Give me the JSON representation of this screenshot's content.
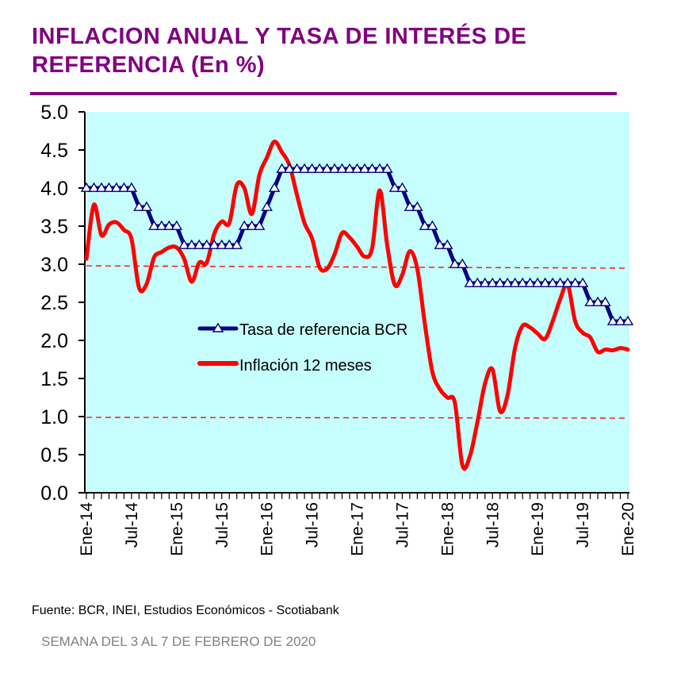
{
  "title": "INFLACION ANUAL Y TASA DE INTERÉS DE REFERENCIA (En %)",
  "source": "Fuente: BCR, INEI, Estudios Económicos - Scotiabank",
  "week": "SEMANA DEL 3 AL 7 DE FEBRERO DE 2020",
  "colors": {
    "title": "#800080",
    "plot_bg": "#c6fdfd",
    "rate": "#000080",
    "inflation": "#ff0000",
    "target_band": "#ff0000"
  },
  "chart_data": {
    "type": "line",
    "title": "INFLACION ANUAL Y TASA DE INTERÉS DE REFERENCIA (En %)",
    "xlabel": "",
    "ylabel": "",
    "ylim": [
      0,
      5
    ],
    "yticks": [
      "0.0",
      "0.5",
      "1.0",
      "1.5",
      "2.0",
      "2.5",
      "3.0",
      "3.5",
      "4.0",
      "4.5",
      "5.0"
    ],
    "x_start": "Ene-14",
    "x_end": "Ene-20",
    "xtick_labels": [
      "Ene-14",
      "Jul-14",
      "Ene-15",
      "Jul-15",
      "Ene-16",
      "Jul-16",
      "Ene-17",
      "Jul-17",
      "Ene-18",
      "Jul-18",
      "Ene-19",
      "Jul-19",
      "Ene-20"
    ],
    "legend_position": "center-left",
    "grid": false,
    "target_band": {
      "upper": 3.0,
      "lower": 1.0
    },
    "series": [
      {
        "name": "Tasa de referencia BCR",
        "marker": "triangle",
        "values": [
          4.0,
          4.0,
          4.0,
          4.0,
          4.0,
          4.0,
          4.0,
          3.75,
          3.75,
          3.5,
          3.5,
          3.5,
          3.5,
          3.25,
          3.25,
          3.25,
          3.25,
          3.25,
          3.25,
          3.25,
          3.25,
          3.5,
          3.5,
          3.5,
          3.75,
          4.0,
          4.25,
          4.25,
          4.25,
          4.25,
          4.25,
          4.25,
          4.25,
          4.25,
          4.25,
          4.25,
          4.25,
          4.25,
          4.25,
          4.25,
          4.25,
          4.0,
          4.0,
          3.75,
          3.75,
          3.5,
          3.5,
          3.25,
          3.25,
          3.0,
          3.0,
          2.75,
          2.75,
          2.75,
          2.75,
          2.75,
          2.75,
          2.75,
          2.75,
          2.75,
          2.75,
          2.75,
          2.75,
          2.75,
          2.75,
          2.75,
          2.75,
          2.5,
          2.5,
          2.5,
          2.25,
          2.25,
          2.25
        ]
      },
      {
        "name": "Inflación 12 meses",
        "marker": "none",
        "values": [
          3.07,
          3.78,
          3.38,
          3.52,
          3.55,
          3.45,
          3.33,
          2.69,
          2.74,
          3.09,
          3.16,
          3.22,
          3.22,
          3.07,
          2.77,
          3.02,
          3.02,
          3.4,
          3.56,
          3.54,
          4.04,
          4.0,
          3.66,
          4.17,
          4.4,
          4.61,
          4.47,
          4.3,
          3.91,
          3.54,
          3.34,
          2.96,
          2.94,
          3.13,
          3.41,
          3.35,
          3.23,
          3.1,
          3.21,
          3.97,
          3.25,
          2.73,
          2.86,
          3.17,
          2.94,
          2.22,
          1.59,
          1.36,
          1.25,
          1.18,
          0.36,
          0.48,
          0.93,
          1.43,
          1.62,
          1.07,
          1.28,
          1.9,
          2.19,
          2.17,
          2.09,
          2.02,
          2.25,
          2.54,
          2.73,
          2.25,
          2.1,
          2.04,
          1.85,
          1.88,
          1.87,
          1.9,
          1.88
        ]
      }
    ]
  }
}
